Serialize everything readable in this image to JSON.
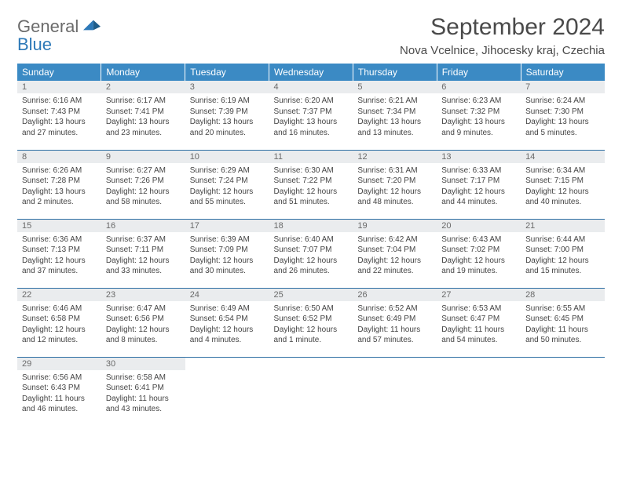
{
  "logo": {
    "line1": "General",
    "line2": "Blue"
  },
  "title": "September 2024",
  "subtitle": "Nova Vcelnice, Jihocesky kraj, Czechia",
  "colors": {
    "header_bg": "#3b8ac4",
    "header_text": "#ffffff",
    "row_divider": "#2d6ea3",
    "daynum_bg": "#eaecee",
    "daynum_text": "#6a6a6a",
    "body_text": "#444444",
    "logo_gray": "#6b6b6b",
    "logo_blue": "#2d79b8",
    "background": "#ffffff"
  },
  "typography": {
    "title_fontsize": 30,
    "subtitle_fontsize": 15,
    "header_fontsize": 12,
    "daynum_fontsize": 11,
    "cell_fontsize": 10,
    "font_family": "Arial"
  },
  "weekdays": [
    "Sunday",
    "Monday",
    "Tuesday",
    "Wednesday",
    "Thursday",
    "Friday",
    "Saturday"
  ],
  "weeks": [
    [
      {
        "n": "1",
        "sunrise": "Sunrise: 6:16 AM",
        "sunset": "Sunset: 7:43 PM",
        "daylight": "Daylight: 13 hours and 27 minutes."
      },
      {
        "n": "2",
        "sunrise": "Sunrise: 6:17 AM",
        "sunset": "Sunset: 7:41 PM",
        "daylight": "Daylight: 13 hours and 23 minutes."
      },
      {
        "n": "3",
        "sunrise": "Sunrise: 6:19 AM",
        "sunset": "Sunset: 7:39 PM",
        "daylight": "Daylight: 13 hours and 20 minutes."
      },
      {
        "n": "4",
        "sunrise": "Sunrise: 6:20 AM",
        "sunset": "Sunset: 7:37 PM",
        "daylight": "Daylight: 13 hours and 16 minutes."
      },
      {
        "n": "5",
        "sunrise": "Sunrise: 6:21 AM",
        "sunset": "Sunset: 7:34 PM",
        "daylight": "Daylight: 13 hours and 13 minutes."
      },
      {
        "n": "6",
        "sunrise": "Sunrise: 6:23 AM",
        "sunset": "Sunset: 7:32 PM",
        "daylight": "Daylight: 13 hours and 9 minutes."
      },
      {
        "n": "7",
        "sunrise": "Sunrise: 6:24 AM",
        "sunset": "Sunset: 7:30 PM",
        "daylight": "Daylight: 13 hours and 5 minutes."
      }
    ],
    [
      {
        "n": "8",
        "sunrise": "Sunrise: 6:26 AM",
        "sunset": "Sunset: 7:28 PM",
        "daylight": "Daylight: 13 hours and 2 minutes."
      },
      {
        "n": "9",
        "sunrise": "Sunrise: 6:27 AM",
        "sunset": "Sunset: 7:26 PM",
        "daylight": "Daylight: 12 hours and 58 minutes."
      },
      {
        "n": "10",
        "sunrise": "Sunrise: 6:29 AM",
        "sunset": "Sunset: 7:24 PM",
        "daylight": "Daylight: 12 hours and 55 minutes."
      },
      {
        "n": "11",
        "sunrise": "Sunrise: 6:30 AM",
        "sunset": "Sunset: 7:22 PM",
        "daylight": "Daylight: 12 hours and 51 minutes."
      },
      {
        "n": "12",
        "sunrise": "Sunrise: 6:31 AM",
        "sunset": "Sunset: 7:20 PM",
        "daylight": "Daylight: 12 hours and 48 minutes."
      },
      {
        "n": "13",
        "sunrise": "Sunrise: 6:33 AM",
        "sunset": "Sunset: 7:17 PM",
        "daylight": "Daylight: 12 hours and 44 minutes."
      },
      {
        "n": "14",
        "sunrise": "Sunrise: 6:34 AM",
        "sunset": "Sunset: 7:15 PM",
        "daylight": "Daylight: 12 hours and 40 minutes."
      }
    ],
    [
      {
        "n": "15",
        "sunrise": "Sunrise: 6:36 AM",
        "sunset": "Sunset: 7:13 PM",
        "daylight": "Daylight: 12 hours and 37 minutes."
      },
      {
        "n": "16",
        "sunrise": "Sunrise: 6:37 AM",
        "sunset": "Sunset: 7:11 PM",
        "daylight": "Daylight: 12 hours and 33 minutes."
      },
      {
        "n": "17",
        "sunrise": "Sunrise: 6:39 AM",
        "sunset": "Sunset: 7:09 PM",
        "daylight": "Daylight: 12 hours and 30 minutes."
      },
      {
        "n": "18",
        "sunrise": "Sunrise: 6:40 AM",
        "sunset": "Sunset: 7:07 PM",
        "daylight": "Daylight: 12 hours and 26 minutes."
      },
      {
        "n": "19",
        "sunrise": "Sunrise: 6:42 AM",
        "sunset": "Sunset: 7:04 PM",
        "daylight": "Daylight: 12 hours and 22 minutes."
      },
      {
        "n": "20",
        "sunrise": "Sunrise: 6:43 AM",
        "sunset": "Sunset: 7:02 PM",
        "daylight": "Daylight: 12 hours and 19 minutes."
      },
      {
        "n": "21",
        "sunrise": "Sunrise: 6:44 AM",
        "sunset": "Sunset: 7:00 PM",
        "daylight": "Daylight: 12 hours and 15 minutes."
      }
    ],
    [
      {
        "n": "22",
        "sunrise": "Sunrise: 6:46 AM",
        "sunset": "Sunset: 6:58 PM",
        "daylight": "Daylight: 12 hours and 12 minutes."
      },
      {
        "n": "23",
        "sunrise": "Sunrise: 6:47 AM",
        "sunset": "Sunset: 6:56 PM",
        "daylight": "Daylight: 12 hours and 8 minutes."
      },
      {
        "n": "24",
        "sunrise": "Sunrise: 6:49 AM",
        "sunset": "Sunset: 6:54 PM",
        "daylight": "Daylight: 12 hours and 4 minutes."
      },
      {
        "n": "25",
        "sunrise": "Sunrise: 6:50 AM",
        "sunset": "Sunset: 6:52 PM",
        "daylight": "Daylight: 12 hours and 1 minute."
      },
      {
        "n": "26",
        "sunrise": "Sunrise: 6:52 AM",
        "sunset": "Sunset: 6:49 PM",
        "daylight": "Daylight: 11 hours and 57 minutes."
      },
      {
        "n": "27",
        "sunrise": "Sunrise: 6:53 AM",
        "sunset": "Sunset: 6:47 PM",
        "daylight": "Daylight: 11 hours and 54 minutes."
      },
      {
        "n": "28",
        "sunrise": "Sunrise: 6:55 AM",
        "sunset": "Sunset: 6:45 PM",
        "daylight": "Daylight: 11 hours and 50 minutes."
      }
    ],
    [
      {
        "n": "29",
        "sunrise": "Sunrise: 6:56 AM",
        "sunset": "Sunset: 6:43 PM",
        "daylight": "Daylight: 11 hours and 46 minutes."
      },
      {
        "n": "30",
        "sunrise": "Sunrise: 6:58 AM",
        "sunset": "Sunset: 6:41 PM",
        "daylight": "Daylight: 11 hours and 43 minutes."
      },
      null,
      null,
      null,
      null,
      null
    ]
  ]
}
